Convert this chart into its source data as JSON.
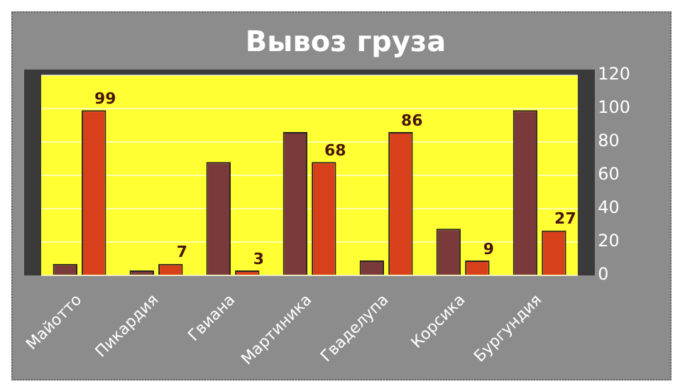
{
  "chart_data": {
    "type": "bar",
    "title": "Вывоз груза",
    "categories": [
      "Майотто",
      "Пикардия",
      "Гвиана",
      "Мартиника",
      "Гваделупа",
      "Корсика",
      "Бургундия"
    ],
    "series": [
      {
        "color": "#7a3a3c",
        "values": [
          7,
          3,
          68,
          86,
          9,
          28,
          99
        ]
      },
      {
        "color": "#d8401c",
        "values": [
          99,
          7,
          3,
          68,
          86,
          9,
          27
        ],
        "value_labels": [
          "99",
          "7",
          "3",
          "68",
          "86",
          "9",
          "27"
        ]
      }
    ],
    "ylim": [
      0,
      120
    ],
    "yticks": [
      0,
      20,
      40,
      60,
      80,
      100,
      120
    ],
    "grid": "y",
    "legend": false
  }
}
